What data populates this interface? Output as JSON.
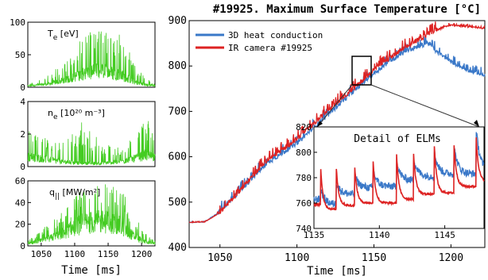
{
  "figure_title": "#19925. Maximum Surface Temperature [°C]",
  "colors": {
    "green": "#44cc22",
    "blue": "#3a78c8",
    "red": "#dd2222"
  },
  "chart_data": [
    {
      "type": "line",
      "panel": "left-top",
      "label_main": "T",
      "label_sub": "e",
      "label_unit": " [eV]",
      "xlim": [
        1030,
        1220
      ],
      "ylim": [
        0,
        100
      ],
      "yticks": [
        "0",
        "50",
        "100"
      ],
      "series": [
        {
          "x": [
            1030,
            1060,
            1090,
            1110,
            1130,
            1150,
            1170,
            1190,
            1205,
            1220
          ],
          "y": [
            2,
            5,
            12,
            20,
            25,
            24,
            18,
            8,
            4,
            2
          ],
          "peak_x": [
            1030,
            1060,
            1090,
            1110,
            1130,
            1150,
            1170,
            1190,
            1205,
            1220
          ],
          "peak_y": [
            5,
            18,
            45,
            75,
            95,
            95,
            80,
            40,
            15,
            5
          ]
        }
      ]
    },
    {
      "type": "line",
      "panel": "left-mid",
      "label_main": "n",
      "label_sub": "e",
      "label_unit": " [10²⁰ m⁻³]",
      "xlim": [
        1030,
        1220
      ],
      "ylim": [
        0,
        4
      ],
      "yticks": [
        "0",
        "2",
        "4"
      ],
      "series": [
        {
          "x": [
            1030,
            1050,
            1080,
            1110,
            1140,
            1170,
            1190,
            1205,
            1220
          ],
          "y": [
            0.6,
            0.5,
            0.3,
            0.2,
            0.2,
            0.3,
            0.5,
            0.7,
            0.6
          ],
          "peak_x": [
            1030,
            1050,
            1080,
            1110,
            1140,
            1170,
            1190,
            1205,
            1220
          ],
          "peak_y": [
            2.5,
            2.0,
            1.5,
            2.8,
            1.5,
            1.2,
            2.0,
            3.0,
            2.6
          ]
        }
      ]
    },
    {
      "type": "line",
      "panel": "left-bot",
      "label_main": "q",
      "label_sub": "||",
      "label_unit": " [MW/m²]",
      "xlim": [
        1030,
        1220
      ],
      "ylim": [
        0,
        60
      ],
      "yticks": [
        "0",
        "20",
        "40",
        "60"
      ],
      "xticks": [
        "1050",
        "1100",
        "1150",
        "1200"
      ],
      "xlabel": "Time [ms]",
      "series": [
        {
          "x": [
            1030,
            1060,
            1090,
            1110,
            1130,
            1150,
            1170,
            1190,
            1205,
            1220
          ],
          "y": [
            2,
            6,
            14,
            20,
            22,
            22,
            18,
            8,
            4,
            2
          ],
          "peak_x": [
            1030,
            1060,
            1090,
            1110,
            1130,
            1150,
            1170,
            1190,
            1205,
            1220
          ],
          "peak_y": [
            5,
            20,
            38,
            52,
            58,
            58,
            52,
            30,
            12,
            5
          ]
        }
      ]
    },
    {
      "type": "line",
      "panel": "main",
      "xlim": [
        1030,
        1222
      ],
      "ylim": [
        400,
        900
      ],
      "yticks": [
        "400",
        "500",
        "600",
        "700",
        "800",
        "900"
      ],
      "xticks": [
        "1050",
        "1100",
        "1150",
        "1200"
      ],
      "xlabel": "Time [ms]",
      "series": [
        {
          "name": "3D heat conduction",
          "x": [
            1030,
            1040,
            1050,
            1060,
            1070,
            1080,
            1090,
            1100,
            1110,
            1120,
            1130,
            1140,
            1150,
            1160,
            1170,
            1180,
            1185,
            1190,
            1200,
            1210,
            1222
          ],
          "y": [
            455,
            456,
            478,
            512,
            548,
            582,
            605,
            628,
            660,
            690,
            722,
            752,
            782,
            808,
            830,
            842,
            850,
            832,
            808,
            790,
            778
          ]
        },
        {
          "name": "IR camera #19925",
          "x": [
            1030,
            1040,
            1050,
            1060,
            1070,
            1080,
            1090,
            1100,
            1110,
            1120,
            1130,
            1140,
            1150,
            1160,
            1170,
            1180,
            1190,
            1200,
            1210,
            1222
          ],
          "y": [
            455,
            456,
            476,
            512,
            552,
            588,
            612,
            638,
            668,
            700,
            730,
            758,
            790,
            815,
            838,
            858,
            878,
            890,
            886,
            882
          ]
        }
      ]
    },
    {
      "type": "line",
      "panel": "inset",
      "title": "Detail of ELMs",
      "xlim": [
        1135,
        1148
      ],
      "ylim": [
        740,
        820
      ],
      "yticks": [
        "740",
        "760",
        "780",
        "800",
        "820"
      ],
      "xticks": [
        "1135",
        "1140",
        "1145"
      ],
      "elm_times": [
        1135.5,
        1136.7,
        1138.1,
        1139.5,
        1141.3,
        1142.6,
        1144.2,
        1145.7,
        1147.4
      ],
      "series": [
        {
          "name": "3D heat conduction",
          "base": [
            759,
            767,
            772,
            773,
            778,
            781,
            783,
            783,
            785
          ],
          "peak": [
            772,
            777,
            783,
            787,
            793,
            796,
            800,
            805,
            818
          ]
        },
        {
          "name": "IR camera #19925",
          "base": [
            755,
            758,
            760,
            760,
            763,
            767,
            768,
            773,
            777
          ],
          "peak": [
            790,
            790,
            792,
            798,
            802,
            802,
            806,
            808,
            812
          ]
        }
      ]
    }
  ]
}
